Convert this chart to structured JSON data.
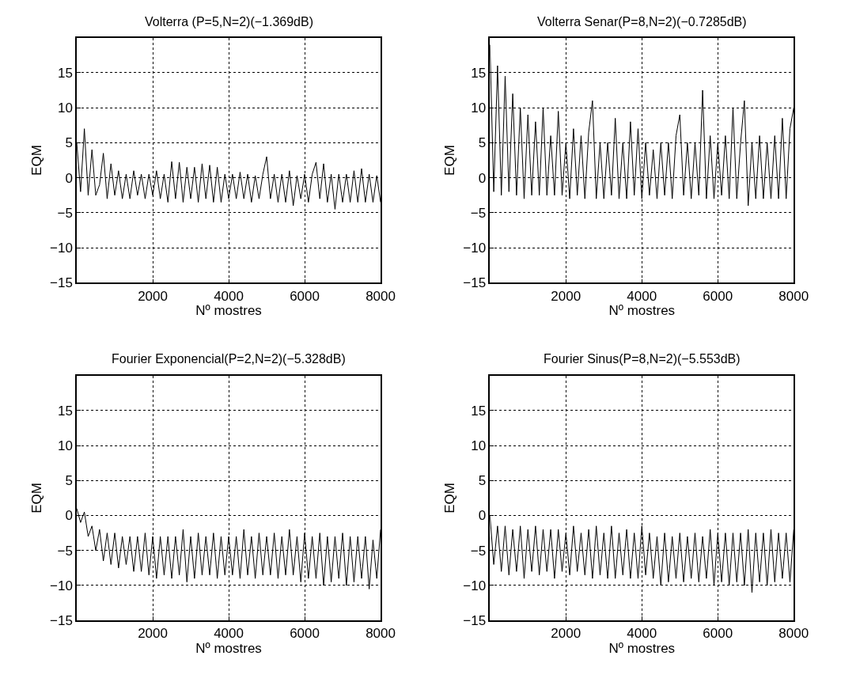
{
  "chart_data": [
    {
      "type": "line",
      "title": "Volterra (P=5,N=2)(−1.369dB)",
      "xlabel": "Nº mostres",
      "ylabel": "EQM",
      "xlim": [
        0,
        8000
      ],
      "ylim": [
        -15,
        20
      ],
      "xticks": [
        2000,
        4000,
        6000,
        8000
      ],
      "yticks": [
        -15,
        -10,
        -5,
        0,
        5,
        10,
        15
      ],
      "grid": true,
      "x": [
        0,
        100,
        200,
        300,
        400,
        500,
        600,
        700,
        800,
        900,
        1000,
        1100,
        1200,
        1300,
        1400,
        1500,
        1600,
        1700,
        1800,
        1900,
        2000,
        2100,
        2200,
        2300,
        2400,
        2500,
        2600,
        2700,
        2800,
        2900,
        3000,
        3100,
        3200,
        3300,
        3400,
        3500,
        3600,
        3700,
        3800,
        3900,
        4000,
        4100,
        4200,
        4300,
        4400,
        4500,
        4600,
        4700,
        4800,
        4900,
        5000,
        5100,
        5200,
        5300,
        5400,
        5500,
        5600,
        5700,
        5800,
        5900,
        6000,
        6100,
        6200,
        6300,
        6400,
        6500,
        6600,
        6700,
        6800,
        6900,
        7000,
        7100,
        7200,
        7300,
        7400,
        7500,
        7600,
        7700,
        7800,
        7900,
        8000
      ],
      "series": [
        {
          "color": "#000000",
          "values": [
            5,
            -2,
            7,
            -2.5,
            4,
            -2.5,
            -1,
            3.5,
            -3,
            2,
            -2.5,
            1,
            -3,
            0.5,
            -3,
            1,
            -2.5,
            0.5,
            -3,
            0.5,
            -2.5,
            1,
            -3,
            0.5,
            -3.5,
            2.3,
            -3,
            2.2,
            -3.5,
            1.5,
            -3,
            1.5,
            -3.5,
            2,
            -3,
            1.8,
            -3.5,
            1.5,
            -3.5,
            0.5,
            -3,
            0.5,
            -3,
            0.8,
            -3,
            0.5,
            -3.5,
            0.3,
            -3,
            0.5,
            3,
            -3,
            0.5,
            -3.5,
            0.5,
            -3.5,
            1,
            -4,
            0.3,
            -3,
            0.5,
            -3.5,
            0.5,
            2.2,
            -3,
            2,
            -3.5,
            0.5,
            -4.5,
            0.5,
            -3.5,
            0.5,
            -3.5,
            1,
            -3.5,
            1.3,
            -3.5,
            0.5,
            -3.5,
            0.3,
            -3.5
          ]
        }
      ]
    },
    {
      "type": "line",
      "title": "Volterra Senar(P=8,N=2)(−0.7285dB)",
      "xlabel": "Nº mostres",
      "ylabel": "EQM",
      "xlim": [
        0,
        8000
      ],
      "ylim": [
        -15,
        20
      ],
      "xticks": [
        2000,
        4000,
        6000,
        8000
      ],
      "yticks": [
        -15,
        -10,
        -5,
        0,
        5,
        10,
        15
      ],
      "grid": true,
      "x": [
        0,
        100,
        200,
        300,
        400,
        500,
        600,
        700,
        800,
        900,
        1000,
        1100,
        1200,
        1300,
        1400,
        1500,
        1600,
        1700,
        1800,
        1900,
        2000,
        2100,
        2200,
        2300,
        2400,
        2500,
        2600,
        2700,
        2800,
        2900,
        3000,
        3100,
        3200,
        3300,
        3400,
        3500,
        3600,
        3700,
        3800,
        3900,
        4000,
        4100,
        4200,
        4300,
        4400,
        4500,
        4600,
        4700,
        4800,
        4900,
        5000,
        5100,
        5200,
        5300,
        5400,
        5500,
        5600,
        5700,
        5800,
        5900,
        6000,
        6100,
        6200,
        6300,
        6400,
        6500,
        6600,
        6700,
        6800,
        6900,
        7000,
        7100,
        7200,
        7300,
        7400,
        7500,
        7600,
        7700,
        7800,
        7900,
        8000
      ],
      "series": [
        {
          "color": "#000000",
          "values": [
            19,
            -2,
            16,
            -2.5,
            14.5,
            -2,
            12,
            -2.5,
            10,
            -3,
            9,
            -2.5,
            8,
            -2.5,
            10,
            -2.5,
            6,
            -2.5,
            9.5,
            -2.5,
            5,
            -3,
            7,
            -2.5,
            6,
            -3,
            6.5,
            11,
            -3,
            5,
            -3,
            5,
            -2.5,
            8.5,
            -3,
            5,
            -3,
            8,
            -2.5,
            7,
            -3,
            5,
            -2.5,
            4,
            -3,
            5,
            -2.5,
            5,
            -3,
            6,
            9,
            -2.5,
            5,
            -3,
            5,
            -2.5,
            12.5,
            -3,
            6,
            -3,
            5,
            -2.5,
            6,
            -3,
            10,
            -3,
            5,
            11,
            -4,
            5,
            -3,
            6,
            -3,
            5,
            -3,
            6,
            -3,
            8.5,
            -3,
            7,
            10
          ]
        }
      ]
    },
    {
      "type": "line",
      "title": "Fourier Exponencial(P=2,N=2)(−5.328dB)",
      "xlabel": "Nº mostres",
      "ylabel": "EQM",
      "xlim": [
        0,
        8000
      ],
      "ylim": [
        -15,
        20
      ],
      "xticks": [
        2000,
        4000,
        6000,
        8000
      ],
      "yticks": [
        -15,
        -10,
        -5,
        0,
        5,
        10,
        15
      ],
      "grid": true,
      "x": [
        0,
        100,
        200,
        300,
        400,
        500,
        600,
        700,
        800,
        900,
        1000,
        1100,
        1200,
        1300,
        1400,
        1500,
        1600,
        1700,
        1800,
        1900,
        2000,
        2100,
        2200,
        2300,
        2400,
        2500,
        2600,
        2700,
        2800,
        2900,
        3000,
        3100,
        3200,
        3300,
        3400,
        3500,
        3600,
        3700,
        3800,
        3900,
        4000,
        4100,
        4200,
        4300,
        4400,
        4500,
        4600,
        4700,
        4800,
        4900,
        5000,
        5100,
        5200,
        5300,
        5400,
        5500,
        5600,
        5700,
        5800,
        5900,
        6000,
        6100,
        6200,
        6300,
        6400,
        6500,
        6600,
        6700,
        6800,
        6900,
        7000,
        7100,
        7200,
        7300,
        7400,
        7500,
        7600,
        7700,
        7800,
        7900,
        8000
      ],
      "series": [
        {
          "color": "#000000",
          "values": [
            1,
            -1,
            0.5,
            -3,
            -1.5,
            -5,
            -2,
            -6.5,
            -2.5,
            -7,
            -2.5,
            -7.5,
            -3,
            -7,
            -3,
            -8,
            -3,
            -8,
            -2.5,
            -8.5,
            -3,
            -9,
            -3,
            -8.5,
            -3,
            -9,
            -3,
            -8.5,
            -2,
            -9.5,
            -3,
            -9,
            -2.5,
            -8.5,
            -3,
            -8.5,
            -2.5,
            -9,
            -3,
            -8.5,
            -3,
            -8.5,
            -3,
            -9,
            -2,
            -8.5,
            -3,
            -9,
            -2.5,
            -8.5,
            -3,
            -8.5,
            -2.5,
            -9,
            -3,
            -8.5,
            -2,
            -8.5,
            -3,
            -9.5,
            -2.5,
            -9,
            -3,
            -9,
            -2.5,
            -10,
            -3,
            -9.5,
            -3,
            -9,
            -2.5,
            -10,
            -3,
            -9.5,
            -3,
            -9,
            -3,
            -10.5,
            -3.5,
            -9,
            -2
          ]
        }
      ]
    },
    {
      "type": "line",
      "title": "Fourier Sinus(P=8,N=2)(−5.553dB)",
      "xlabel": "Nº mostres",
      "ylabel": "EQM",
      "xlim": [
        0,
        8000
      ],
      "ylim": [
        -15,
        20
      ],
      "xticks": [
        2000,
        4000,
        6000,
        8000
      ],
      "yticks": [
        -15,
        -10,
        -5,
        0,
        5,
        10,
        15
      ],
      "grid": true,
      "x": [
        0,
        100,
        200,
        300,
        400,
        500,
        600,
        700,
        800,
        900,
        1000,
        1100,
        1200,
        1300,
        1400,
        1500,
        1600,
        1700,
        1800,
        1900,
        2000,
        2100,
        2200,
        2300,
        2400,
        2500,
        2600,
        2700,
        2800,
        2900,
        3000,
        3100,
        3200,
        3300,
        3400,
        3500,
        3600,
        3700,
        3800,
        3900,
        4000,
        4100,
        4200,
        4300,
        4400,
        4500,
        4600,
        4700,
        4800,
        4900,
        5000,
        5100,
        5200,
        5300,
        5400,
        5500,
        5600,
        5700,
        5800,
        5900,
        6000,
        6100,
        6200,
        6300,
        6400,
        6500,
        6600,
        6700,
        6800,
        6900,
        7000,
        7100,
        7200,
        7300,
        7400,
        7500,
        7600,
        7700,
        7800,
        7900,
        8000
      ],
      "series": [
        {
          "color": "#000000",
          "values": [
            0,
            -7,
            -1.5,
            -8,
            -1.5,
            -8.5,
            -2,
            -8,
            -1.5,
            -9,
            -2,
            -8,
            -1.5,
            -8.5,
            -2,
            -8,
            -2,
            -9,
            -2,
            -8,
            -2.5,
            -8.5,
            -1.5,
            -8,
            -2.5,
            -8.5,
            -2,
            -9,
            -1.5,
            -8.5,
            -2.5,
            -9,
            -1.5,
            -9,
            -2.5,
            -8.5,
            -2,
            -9,
            -2.5,
            -9,
            -1.5,
            -8.5,
            -2.5,
            -9,
            -3,
            -10,
            -2.5,
            -9.5,
            -3,
            -9,
            -2.5,
            -9.5,
            -3,
            -9,
            -2.5,
            -9.5,
            -3,
            -9,
            -2,
            -10,
            -2.5,
            -9.5,
            -2.5,
            -10,
            -2.5,
            -9.5,
            -2.5,
            -10,
            -2,
            -11,
            -2.5,
            -9.5,
            -2.5,
            -10,
            -2,
            -9.5,
            -2.5,
            -9,
            -2.5,
            -9.5,
            -2
          ]
        }
      ]
    }
  ]
}
